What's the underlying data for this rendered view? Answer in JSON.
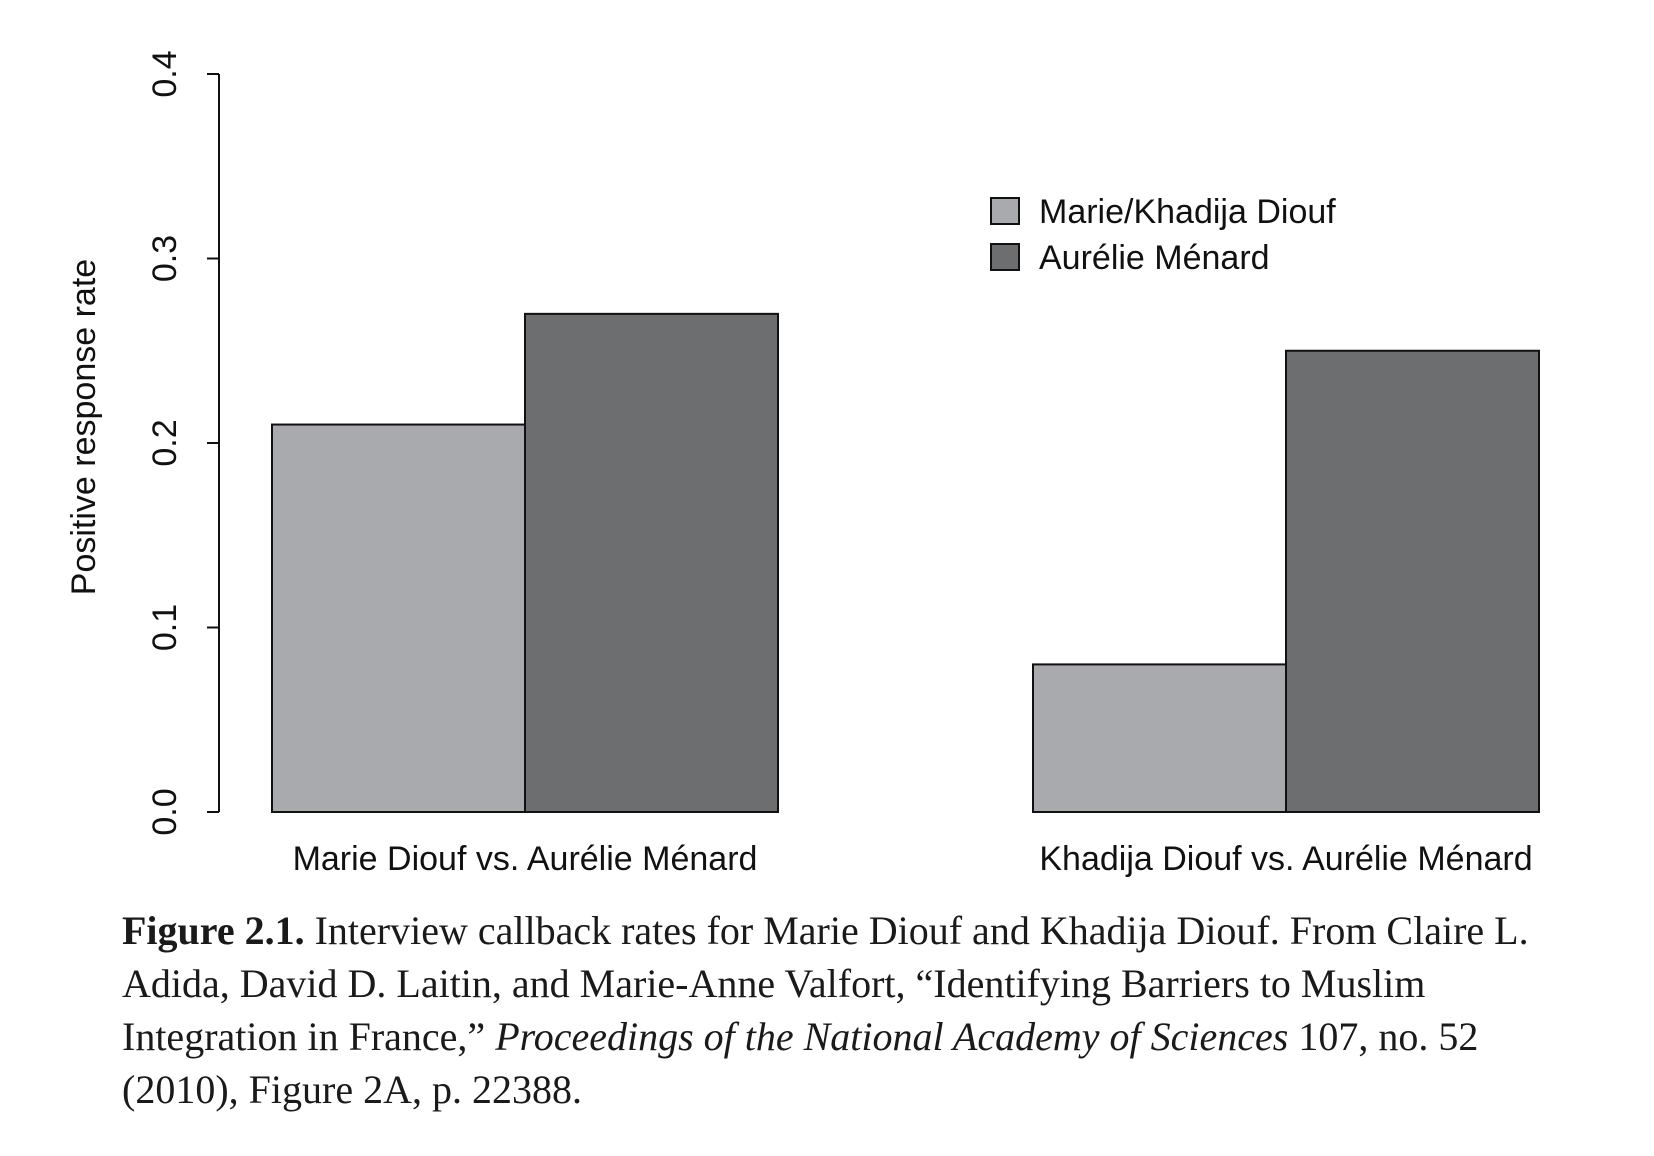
{
  "chart_data": {
    "type": "bar",
    "categories": [
      "Marie Diouf vs. Aurélie Ménard",
      "Khadija Diouf vs. Aurélie Ménard"
    ],
    "series": [
      {
        "name": "Marie/Khadija Diouf",
        "values": [
          0.21,
          0.08
        ],
        "color": "#a9aaad"
      },
      {
        "name": "Aurélie Ménard",
        "values": [
          0.27,
          0.25
        ],
        "color": "#6d6e70"
      }
    ],
    "ylabel": "Positive response rate",
    "xlabel": "",
    "ylim": [
      0,
      0.4
    ],
    "yticks": [
      "0.0",
      "0.1",
      "0.2",
      "0.3",
      "0.4"
    ],
    "legend_position": "top-right",
    "grid": false
  },
  "caption": {
    "label": "Figure 2.1.",
    "text": "Interview callback rates for Marie Diouf and Khadija Diouf. From Claire L. Adida, David D. Laitin, and Marie-Anne Valfort, “Identifying Barriers to Muslim Integration in France,”",
    "journal": "Proceedings of the National Academy of Sciences",
    "rest": "107, no. 52 (2010), Figure 2A, p. 22388."
  }
}
